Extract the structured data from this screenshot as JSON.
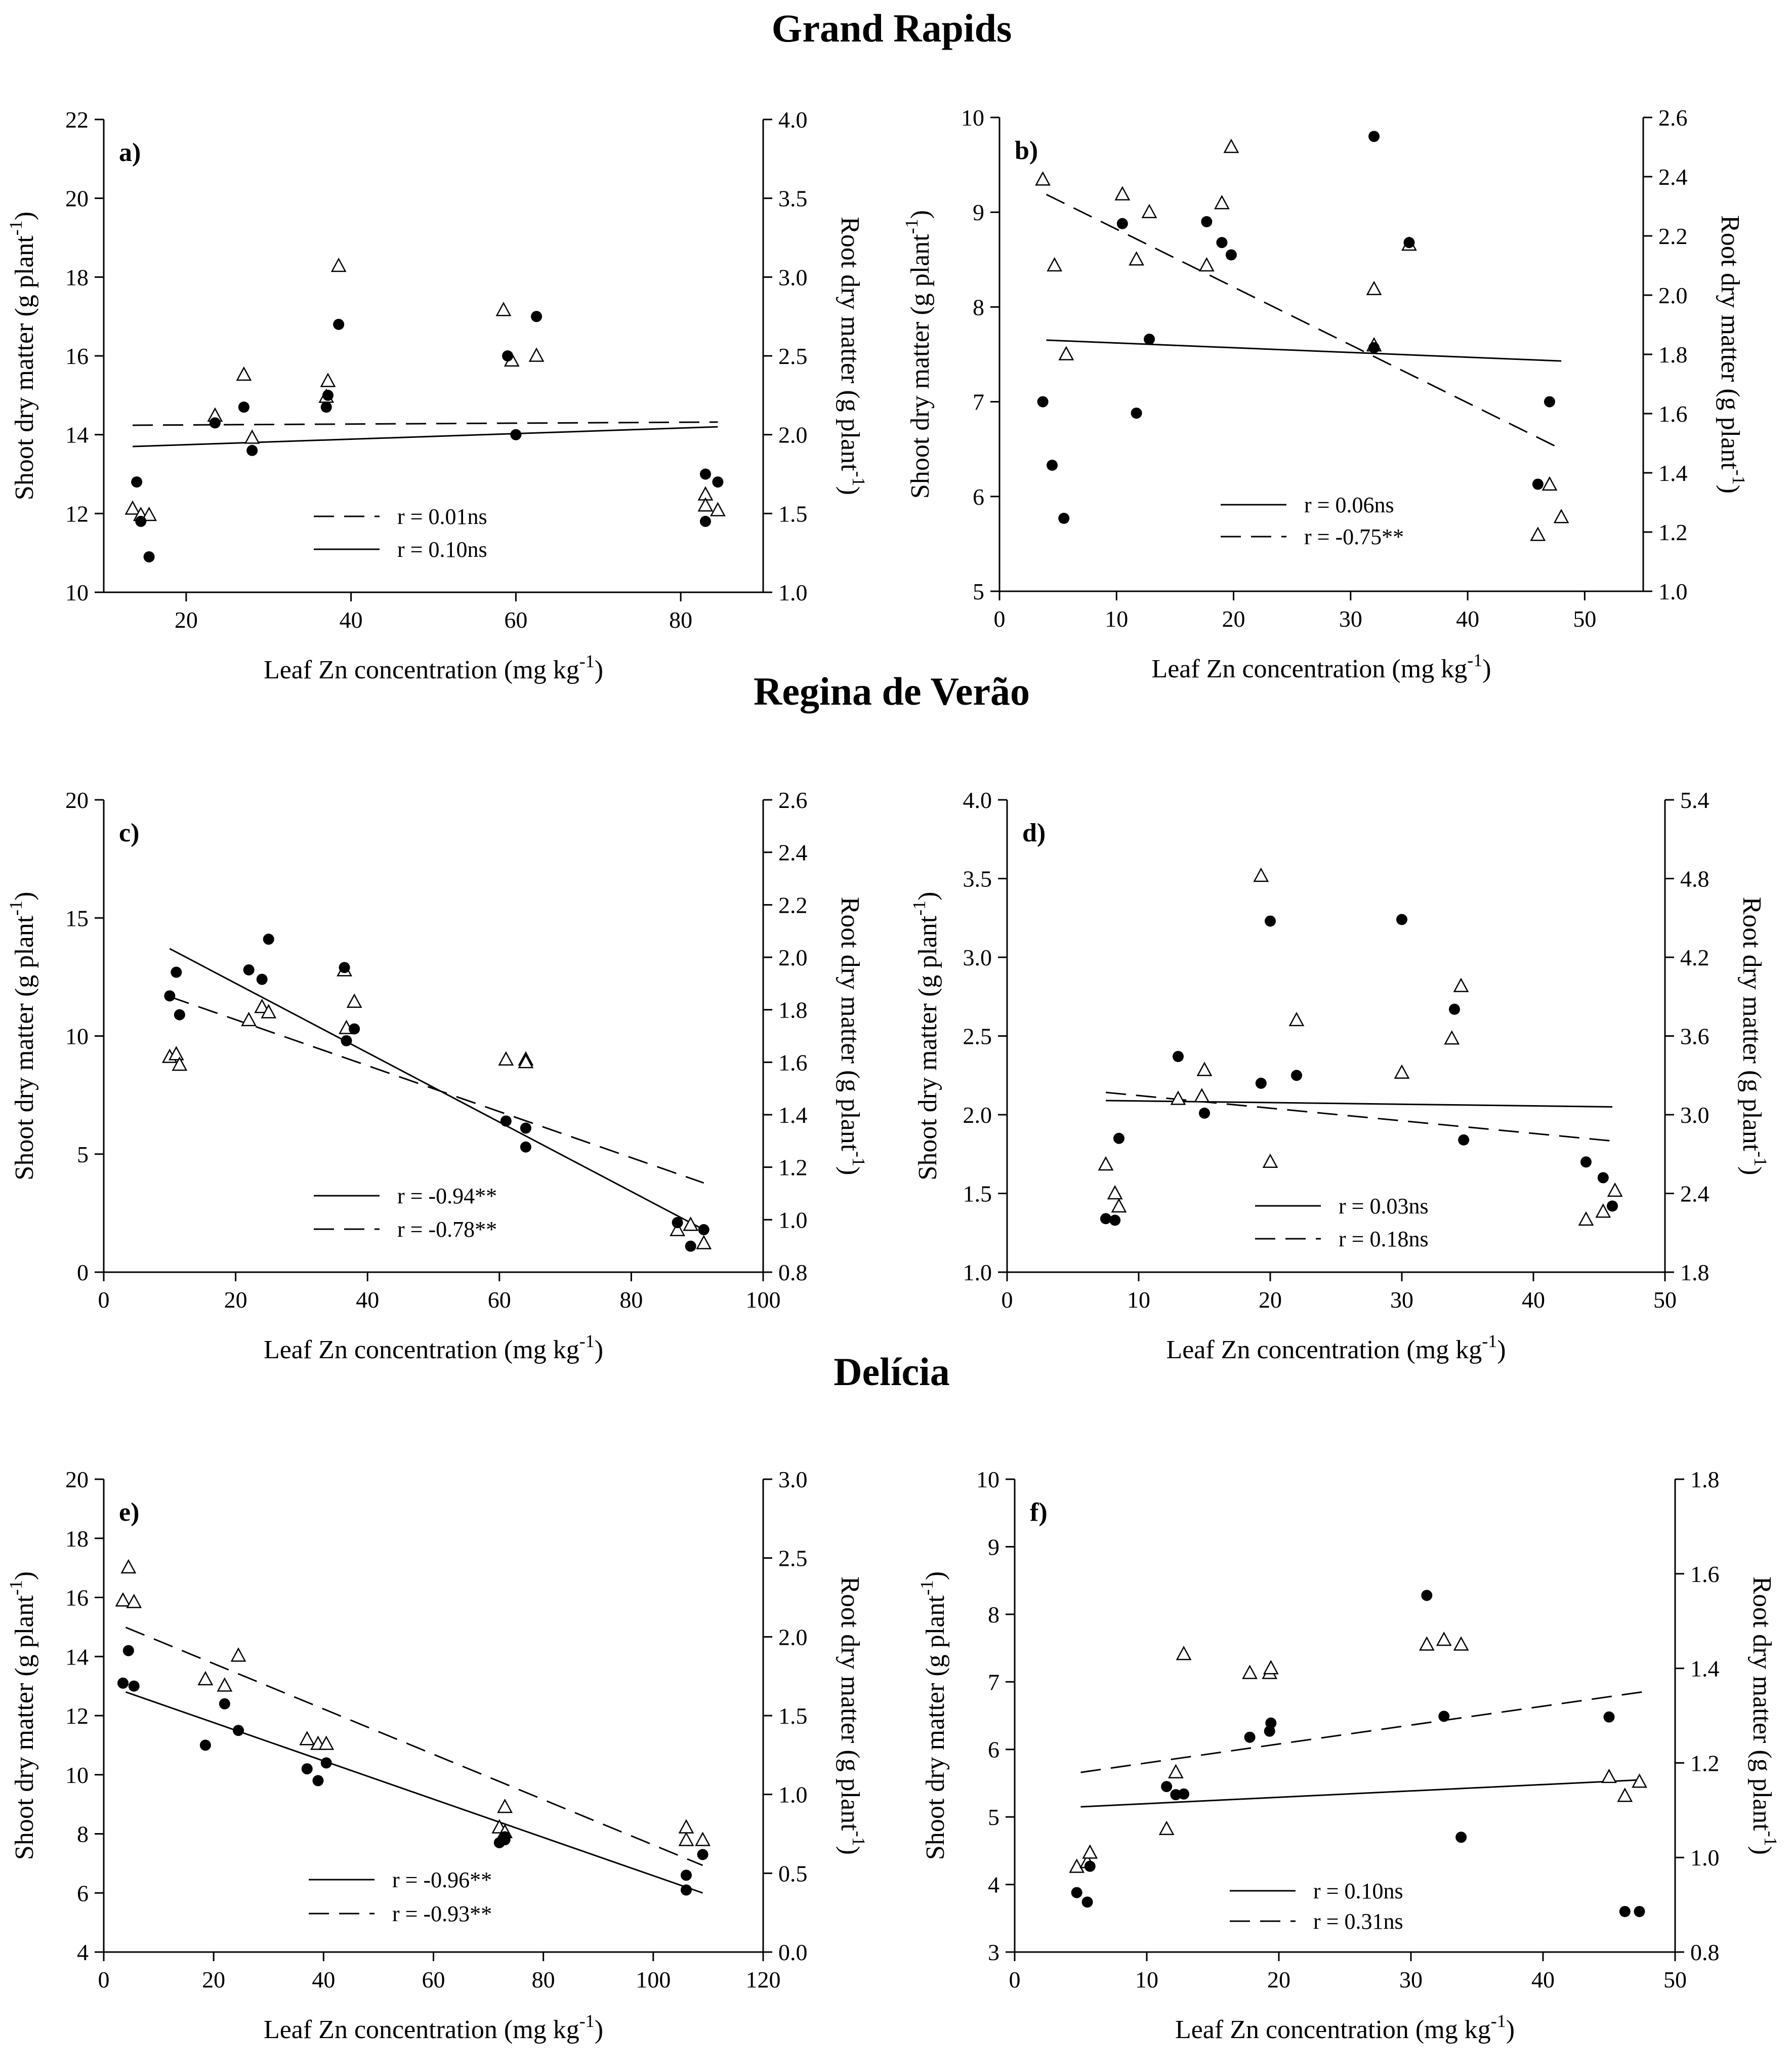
{
  "sections": {
    "grand_rapids": "Grand Rapids",
    "regina": "Regina de Verão",
    "delicia": "Delícia"
  },
  "common": {
    "xlabel_main": "Leaf Zn concentration (mg kg",
    "ylabel_left_main": "Shoot dry matter (g plant",
    "ylabel_right_main": "Root dry matter (g plant",
    "unit_sup": "-1",
    "unit_close": ")"
  },
  "chart_data": [
    {
      "id": "a",
      "type": "scatter",
      "panel_label": "a)",
      "xlim": [
        10,
        90
      ],
      "xticks": [
        20,
        40,
        60,
        80
      ],
      "ylim_left": [
        10,
        22
      ],
      "yticks_left": [
        10,
        12,
        14,
        16,
        18,
        20,
        22
      ],
      "ydec_left": 0,
      "ylim_right": [
        1.0,
        4.0
      ],
      "yticks_right": [
        1.0,
        1.5,
        2.0,
        2.5,
        3.0,
        3.5,
        4.0
      ],
      "ydec_right": 1,
      "shoot": {
        "x": [
          14,
          14.5,
          15.5,
          23.5,
          27,
          28,
          37,
          37.2,
          38.5,
          59,
          60,
          62.5,
          83,
          83,
          84.5
        ],
        "y": [
          12.8,
          11.8,
          10.9,
          14.3,
          14.7,
          13.6,
          14.7,
          15.0,
          16.8,
          16.0,
          14.0,
          17.0,
          13.0,
          11.8,
          12.8
        ]
      },
      "root": {
        "x": [
          13.5,
          14.5,
          15.5,
          23.5,
          27,
          28,
          37,
          37.2,
          38.5,
          58.5,
          59.5,
          62.5,
          83,
          83,
          84.5
        ],
        "y": [
          1.53,
          1.49,
          1.49,
          2.12,
          2.38,
          1.98,
          2.24,
          2.34,
          3.07,
          2.79,
          2.47,
          2.5,
          1.62,
          1.55,
          1.52
        ]
      },
      "fit_shoot": {
        "x": [
          13.5,
          84.5
        ],
        "y": [
          13.7,
          14.2
        ]
      },
      "fit_root": {
        "x": [
          13.5,
          84.5
        ],
        "y": [
          2.06,
          2.08
        ]
      },
      "legend": {
        "dashed": "r = 0.01ns",
        "solid": "r = 0.10ns"
      }
    },
    {
      "id": "b",
      "type": "scatter",
      "panel_label": "b)",
      "xlim": [
        0,
        55
      ],
      "xticks": [
        0,
        10,
        20,
        30,
        40,
        50
      ],
      "ylim_left": [
        5,
        10
      ],
      "yticks_left": [
        5,
        6,
        7,
        8,
        9,
        10
      ],
      "ydec_left": 0,
      "ylim_right": [
        1.0,
        2.6
      ],
      "yticks_right": [
        1.0,
        1.2,
        1.4,
        1.6,
        1.8,
        2.0,
        2.2,
        2.4,
        2.6
      ],
      "ydec_right": 1,
      "shoot": {
        "x": [
          3.7,
          4.5,
          5.5,
          10.5,
          11.7,
          12.8,
          17.7,
          19,
          19.8,
          32,
          32,
          35,
          46,
          47
        ],
        "y": [
          7.0,
          6.33,
          5.77,
          8.88,
          6.88,
          7.66,
          8.9,
          8.68,
          8.55,
          9.8,
          7.57,
          8.68,
          6.13,
          7.0
        ]
      },
      "root": {
        "x": [
          3.7,
          4.7,
          5.7,
          10.5,
          11.7,
          12.8,
          17.7,
          19,
          19.8,
          32,
          32,
          35,
          46,
          47,
          48
        ],
        "y": [
          2.39,
          2.1,
          1.8,
          2.34,
          2.12,
          2.28,
          2.1,
          2.31,
          2.5,
          2.02,
          1.83,
          2.17,
          1.19,
          1.36,
          1.25
        ]
      },
      "fit_shoot": {
        "x": [
          4,
          48
        ],
        "y": [
          7.65,
          7.43
        ]
      },
      "fit_root": {
        "x": [
          4,
          48
        ],
        "y": [
          2.34,
          1.48
        ]
      },
      "legend": {
        "solid": "r = 0.06ns",
        "dashed": "r = -0.75**"
      }
    },
    {
      "id": "c",
      "type": "scatter",
      "panel_label": "c)",
      "xlim": [
        0,
        100
      ],
      "xticks": [
        0,
        20,
        40,
        60,
        80,
        100
      ],
      "ylim_left": [
        0,
        20
      ],
      "yticks_left": [
        0,
        5,
        10,
        15,
        20
      ],
      "ydec_left": 0,
      "ylim_right": [
        0.8,
        2.6
      ],
      "yticks_right": [
        0.8,
        1.0,
        1.2,
        1.4,
        1.6,
        1.8,
        2.0,
        2.2,
        2.4,
        2.6
      ],
      "ydec_right": 1,
      "shoot": {
        "x": [
          10,
          11,
          11.5,
          22,
          24,
          25,
          36.5,
          36.8,
          38,
          61,
          64,
          64,
          87,
          89,
          91
        ],
        "y": [
          11.7,
          12.7,
          10.9,
          12.8,
          12.4,
          14.1,
          12.9,
          9.8,
          10.3,
          6.4,
          6.1,
          5.3,
          2.1,
          1.1,
          1.8
        ]
      },
      "root": {
        "x": [
          10,
          11,
          11.5,
          22,
          24,
          25,
          36.5,
          36.8,
          38,
          61,
          64,
          64,
          87,
          89,
          91
        ],
        "y": [
          1.62,
          1.63,
          1.59,
          1.76,
          1.81,
          1.79,
          1.95,
          1.73,
          1.83,
          1.61,
          1.61,
          1.6,
          0.96,
          0.98,
          0.91
        ]
      },
      "fit_shoot": {
        "x": [
          10,
          91
        ],
        "y": [
          13.7,
          1.8
        ]
      },
      "fit_root": {
        "x": [
          10,
          91
        ],
        "y": [
          1.85,
          1.14
        ]
      },
      "legend": {
        "solid": "r = -0.94**",
        "dashed": "r = -0.78**"
      }
    },
    {
      "id": "d",
      "type": "scatter",
      "panel_label": "d)",
      "xlim": [
        0,
        50
      ],
      "xticks": [
        0,
        10,
        20,
        30,
        40,
        50
      ],
      "ylim_left": [
        1.0,
        4.0
      ],
      "yticks_left": [
        1.0,
        1.5,
        2.0,
        2.5,
        3.0,
        3.5,
        4.0
      ],
      "ydec_left": 1,
      "ylim_right": [
        1.8,
        5.4
      ],
      "yticks_right": [
        1.8,
        2.4,
        3.0,
        3.6,
        4.2,
        4.8,
        5.4
      ],
      "ydec_right": 1,
      "shoot": {
        "x": [
          7.5,
          8.2,
          8.5,
          13,
          15,
          19.3,
          20,
          22,
          30,
          34,
          34.7,
          44,
          45.3,
          46
        ],
        "y": [
          1.34,
          1.33,
          1.85,
          2.37,
          2.01,
          2.2,
          3.23,
          2.25,
          3.24,
          2.67,
          1.84,
          1.7,
          1.6,
          1.42
        ]
      },
      "root": {
        "x": [
          7.5,
          8.2,
          8.5,
          13,
          14.8,
          15,
          19.3,
          20,
          22,
          30,
          33.8,
          34.5,
          44,
          45.3,
          46.2
        ],
        "y": [
          2.62,
          2.4,
          2.3,
          3.12,
          3.14,
          3.34,
          4.82,
          2.64,
          3.72,
          3.32,
          3.58,
          3.98,
          2.2,
          2.26,
          2.42
        ]
      },
      "fit_shoot": {
        "x": [
          7.5,
          46
        ],
        "y": [
          2.09,
          2.05
        ]
      },
      "fit_root": {
        "x": [
          7.5,
          46
        ],
        "y": [
          3.17,
          2.8
        ]
      },
      "legend": {
        "solid": "r = 0.03ns",
        "dashed": "r = 0.18ns"
      }
    },
    {
      "id": "e",
      "type": "scatter",
      "panel_label": "e)",
      "xlim": [
        0,
        120
      ],
      "xticks": [
        0,
        20,
        40,
        60,
        80,
        100,
        120
      ],
      "ylim_left": [
        4,
        20
      ],
      "yticks_left": [
        4,
        6,
        8,
        10,
        12,
        14,
        16,
        18,
        20
      ],
      "ydec_left": 0,
      "ylim_right": [
        0.0,
        3.0
      ],
      "yticks_right": [
        0.0,
        0.5,
        1.0,
        1.5,
        2.0,
        2.5,
        3.0
      ],
      "ydec_right": 1,
      "shoot": {
        "x": [
          3.5,
          4.5,
          5.5,
          18.5,
          22,
          24.5,
          37,
          39,
          40.5,
          72,
          73,
          73,
          106,
          106,
          109
        ],
        "y": [
          13.1,
          14.2,
          13.0,
          11.0,
          12.4,
          11.5,
          10.2,
          9.8,
          10.4,
          7.7,
          7.8,
          7.9,
          6.6,
          6.1,
          7.3
        ]
      },
      "root": {
        "x": [
          3.5,
          4.5,
          5.5,
          18.5,
          22,
          24.5,
          37,
          39,
          40.5,
          72,
          73,
          73,
          106,
          106,
          109
        ],
        "y": [
          2.23,
          2.44,
          2.22,
          1.73,
          1.69,
          1.88,
          1.35,
          1.32,
          1.32,
          0.79,
          0.76,
          0.92,
          0.79,
          0.71,
          0.71
        ]
      },
      "fit_shoot": {
        "x": [
          4,
          109
        ],
        "y": [
          12.8,
          6.0
        ]
      },
      "fit_root": {
        "x": [
          4,
          109
        ],
        "y": [
          2.06,
          0.55
        ]
      },
      "legend": {
        "solid": "r = -0.96**",
        "dashed": "r = -0.93**"
      }
    },
    {
      "id": "f",
      "type": "scatter",
      "panel_label": "f)",
      "xlim": [
        0,
        50
      ],
      "xticks": [
        0,
        10,
        20,
        30,
        40,
        50
      ],
      "ylim_left": [
        3,
        10
      ],
      "yticks_left": [
        3,
        4,
        5,
        6,
        7,
        8,
        9,
        10
      ],
      "ydec_left": 0,
      "ylim_right": [
        0.8,
        1.8
      ],
      "yticks_right": [
        0.8,
        1.0,
        1.2,
        1.4,
        1.6,
        1.8
      ],
      "ydec_right": 1,
      "shoot": {
        "x": [
          4.7,
          5.5,
          5.7,
          11.5,
          12.2,
          12.8,
          17.8,
          19.3,
          19.4,
          31.2,
          32.5,
          33.8,
          45,
          46.2,
          47.3
        ],
        "y": [
          3.88,
          3.74,
          4.27,
          5.45,
          5.33,
          5.34,
          6.18,
          6.27,
          6.39,
          8.28,
          6.49,
          4.7,
          6.48,
          3.6,
          3.6
        ]
      },
      "root": {
        "x": [
          4.7,
          5.5,
          5.7,
          11.5,
          12.2,
          12.8,
          17.8,
          19.3,
          19.4,
          31.2,
          32.5,
          33.8,
          45,
          46.2,
          47.3
        ],
        "y": [
          0.98,
          0.99,
          1.01,
          1.06,
          1.18,
          1.43,
          1.39,
          1.39,
          1.4,
          1.45,
          1.46,
          1.45,
          1.17,
          1.13,
          1.16
        ]
      },
      "fit_shoot": {
        "x": [
          5,
          47.5
        ],
        "y": [
          5.15,
          5.55
        ]
      },
      "fit_root": {
        "x": [
          5,
          47.5
        ],
        "y": [
          1.18,
          1.35
        ]
      },
      "legend": {
        "solid": "r = 0.10ns",
        "dashed": "r = 0.31ns"
      }
    }
  ]
}
